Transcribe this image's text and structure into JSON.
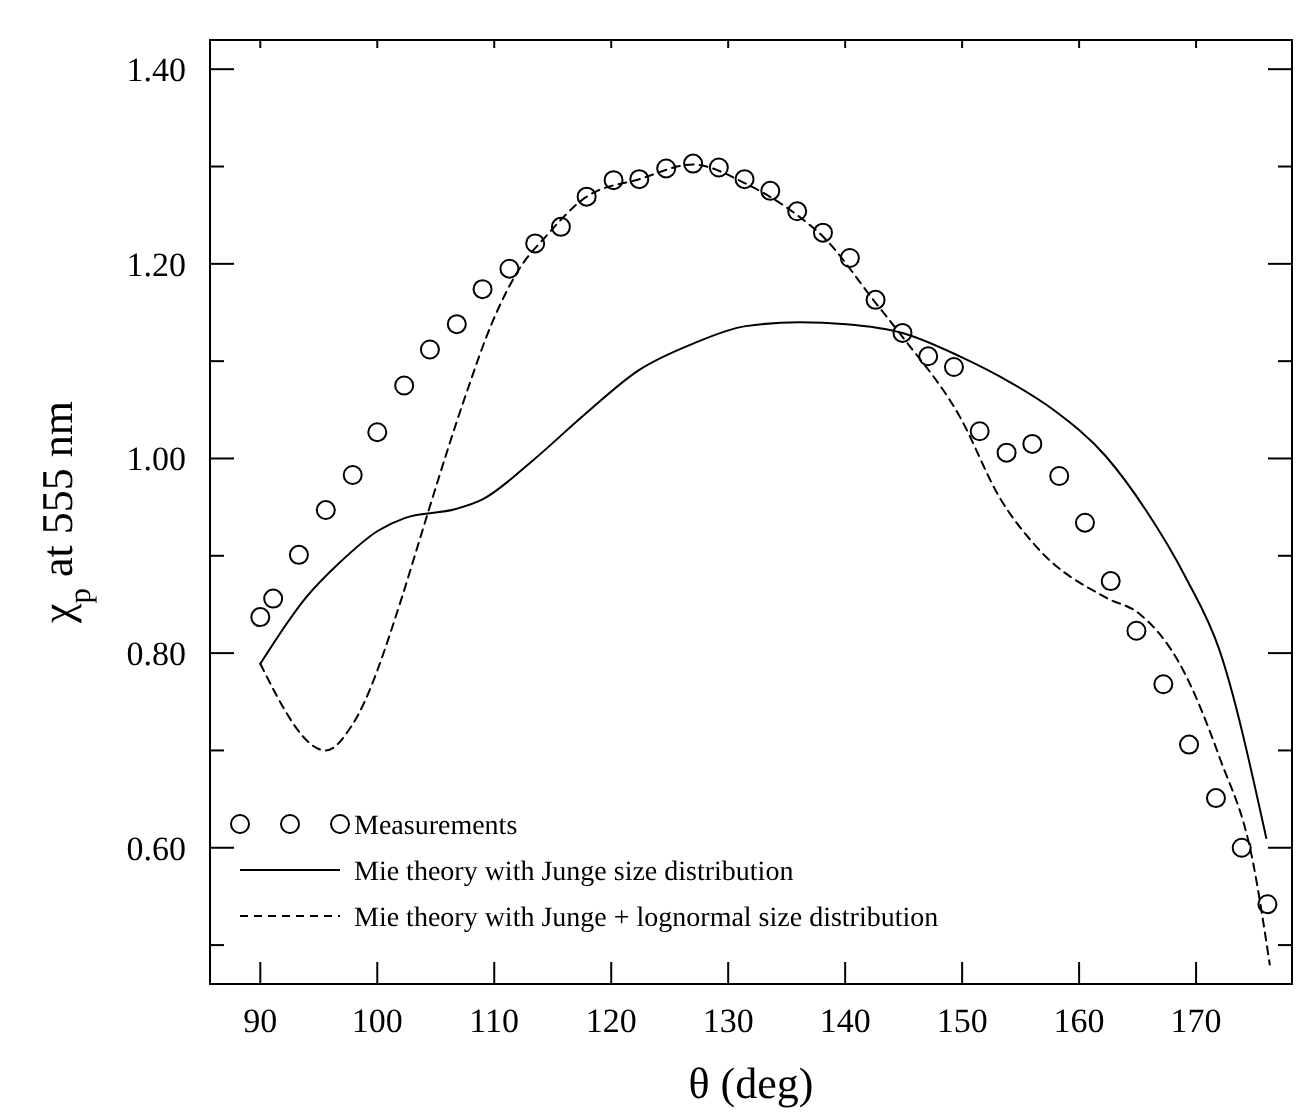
{
  "chart_data": {
    "type": "line",
    "xlabel": "θ (deg)",
    "ylabel": "χ$_{p}$ at 555 nm",
    "xlim": [
      85.7,
      178.2
    ],
    "xticks": [
      90,
      100,
      110,
      120,
      130,
      140,
      150,
      160,
      170
    ],
    "ylim": [
      0.46,
      1.43
    ],
    "yticks": [
      {
        "value": 0.5,
        "label": null
      },
      {
        "value": 0.6,
        "label": "0.60"
      },
      {
        "value": 0.7,
        "label": null
      },
      {
        "value": 0.8,
        "label": "0.80"
      },
      {
        "value": 0.9,
        "label": null
      },
      {
        "value": 1.0,
        "label": "1.00"
      },
      {
        "value": 1.1,
        "label": null
      },
      {
        "value": 1.2,
        "label": "1.20"
      },
      {
        "value": 1.3,
        "label": null
      },
      {
        "value": 1.4,
        "label": "1.40"
      }
    ],
    "grid": false,
    "legend": "bottom left",
    "series": [
      {
        "name": "Measurements",
        "type": "scatter",
        "marker": "circle",
        "color": "#000000",
        "x": [
          90,
          91.1,
          93.3,
          95.6,
          97.9,
          100.0,
          102.3,
          104.5,
          106.8,
          109.0,
          111.3,
          113.5,
          115.7,
          117.9,
          120.2,
          122.4,
          124.7,
          127.0,
          129.2,
          131.4,
          133.6,
          135.9,
          138.1,
          140.4,
          142.6,
          144.9,
          147.1,
          149.3,
          151.5,
          153.8,
          156.0,
          158.3,
          160.5,
          162.7,
          164.9,
          167.2,
          169.4,
          171.7,
          173.9,
          176.1
        ],
        "values": [
          0.837,
          0.856,
          0.901,
          0.947,
          0.983,
          1.027,
          1.075,
          1.112,
          1.138,
          1.174,
          1.195,
          1.221,
          1.238,
          1.269,
          1.286,
          1.287,
          1.298,
          1.303,
          1.299,
          1.287,
          1.275,
          1.254,
          1.232,
          1.206,
          1.163,
          1.129,
          1.105,
          1.094,
          1.028,
          1.006,
          1.015,
          0.982,
          0.934,
          0.874,
          0.823,
          0.768,
          0.706,
          0.651,
          0.6,
          0.542
        ]
      },
      {
        "name": "Mie theory with Junge size distribution",
        "line_style": "solid",
        "marker": "none",
        "color": "#000000",
        "x": [
          90,
          93.9,
          96.7,
          100.1,
          102.4,
          106.7,
          109.0,
          113.3,
          117.8,
          122.4,
          127.0,
          131.5,
          136.1,
          140.1,
          144.9,
          149.8,
          154.3,
          157.8,
          162.3,
          165.7,
          169.1,
          172.0,
          176.0
        ],
        "values": [
          0.789,
          0.857,
          0.892,
          0.926,
          0.939,
          0.948,
          0.958,
          0.998,
          1.046,
          1.091,
          1.118,
          1.136,
          1.14,
          1.138,
          1.129,
          1.105,
          1.077,
          1.05,
          1.002,
          0.947,
          0.878,
          0.803,
          0.61
        ]
      },
      {
        "name": "Mie theory with Junge + lognormal size distribution",
        "line_style": "dashed",
        "marker": "none",
        "color": "#000000",
        "x": [
          90,
          95.6,
          97.9,
          102.1,
          103.0,
          104.4,
          107.5,
          109.8,
          112.1,
          114.4,
          117.9,
          122.4,
          127.0,
          131.4,
          135.9,
          138.1,
          142.6,
          144.9,
          149.8,
          153.2,
          156.6,
          162.3,
          165.2,
          168.6,
          172.0,
          174.9,
          176.3
        ],
        "values": [
          0.789,
          0.7,
          0.727,
          0.857,
          0.892,
          0.947,
          1.063,
          1.139,
          1.194,
          1.228,
          1.269,
          1.287,
          1.302,
          1.283,
          1.25,
          1.228,
          1.16,
          1.125,
          1.043,
          0.96,
          0.906,
          0.857,
          0.84,
          0.789,
          0.693,
          0.583,
          0.48
        ]
      }
    ]
  }
}
